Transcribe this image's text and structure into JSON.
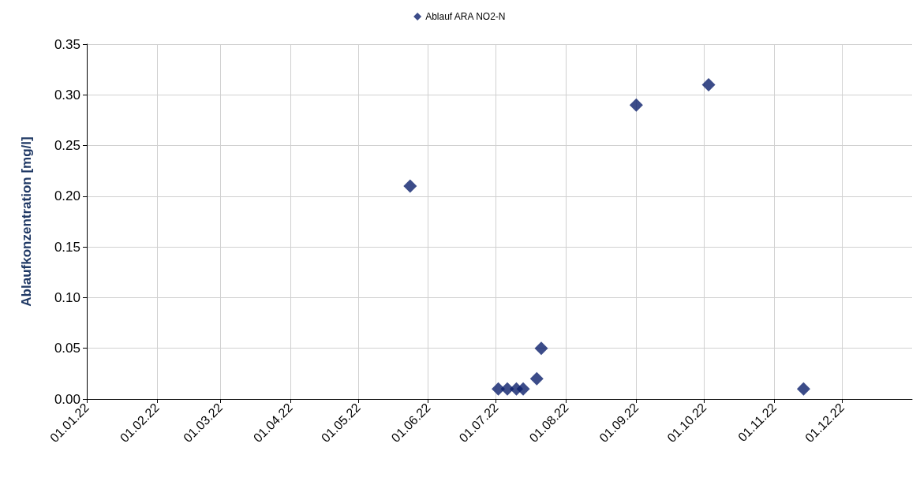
{
  "chart_data": {
    "type": "scatter",
    "ylabel": "Ablaufkonzentration [mg/l]",
    "marker": "diamond",
    "grid": true,
    "legend": "top",
    "xlim": [
      "2022-01-01",
      "2023-01-01"
    ],
    "xticks": [
      {
        "value": "2022-01-01",
        "label": "01.01.22"
      },
      {
        "value": "2022-02-01",
        "label": "01.02.22"
      },
      {
        "value": "2022-03-01",
        "label": "01.03.22"
      },
      {
        "value": "2022-04-01",
        "label": "01.04.22"
      },
      {
        "value": "2022-05-01",
        "label": "01.05.22"
      },
      {
        "value": "2022-06-01",
        "label": "01.06.22"
      },
      {
        "value": "2022-07-01",
        "label": "01.07.22"
      },
      {
        "value": "2022-08-01",
        "label": "01.08.22"
      },
      {
        "value": "2022-09-01",
        "label": "01.09.22"
      },
      {
        "value": "2022-10-01",
        "label": "01.10.22"
      },
      {
        "value": "2022-11-01",
        "label": "01.11.22"
      },
      {
        "value": "2022-12-01",
        "label": "01.12.22"
      }
    ],
    "ylim": [
      0,
      0.35
    ],
    "yticks": [
      {
        "value": 0,
        "label": "0.00"
      },
      {
        "value": 0.05,
        "label": "0.05"
      },
      {
        "value": 0.1,
        "label": "0.10"
      },
      {
        "value": 0.15,
        "label": "0.15"
      },
      {
        "value": 0.2,
        "label": "0.20"
      },
      {
        "value": 0.25,
        "label": "0.25"
      },
      {
        "value": 0.3,
        "label": "0.30"
      },
      {
        "value": 0.35,
        "label": "0.35"
      }
    ],
    "series": [
      {
        "name": "Ablauf ARA NO2-N",
        "color": "#0b1f6b",
        "x": [
          "2022-05-24",
          "2022-07-02",
          "2022-07-06",
          "2022-07-10",
          "2022-07-13",
          "2022-07-19",
          "2022-07-21",
          "2022-09-01",
          "2022-10-03",
          "2022-11-14"
        ],
        "values": [
          0.21,
          0.01,
          0.01,
          0.01,
          0.01,
          0.02,
          0.05,
          0.29,
          0.31,
          0.01
        ]
      }
    ]
  }
}
